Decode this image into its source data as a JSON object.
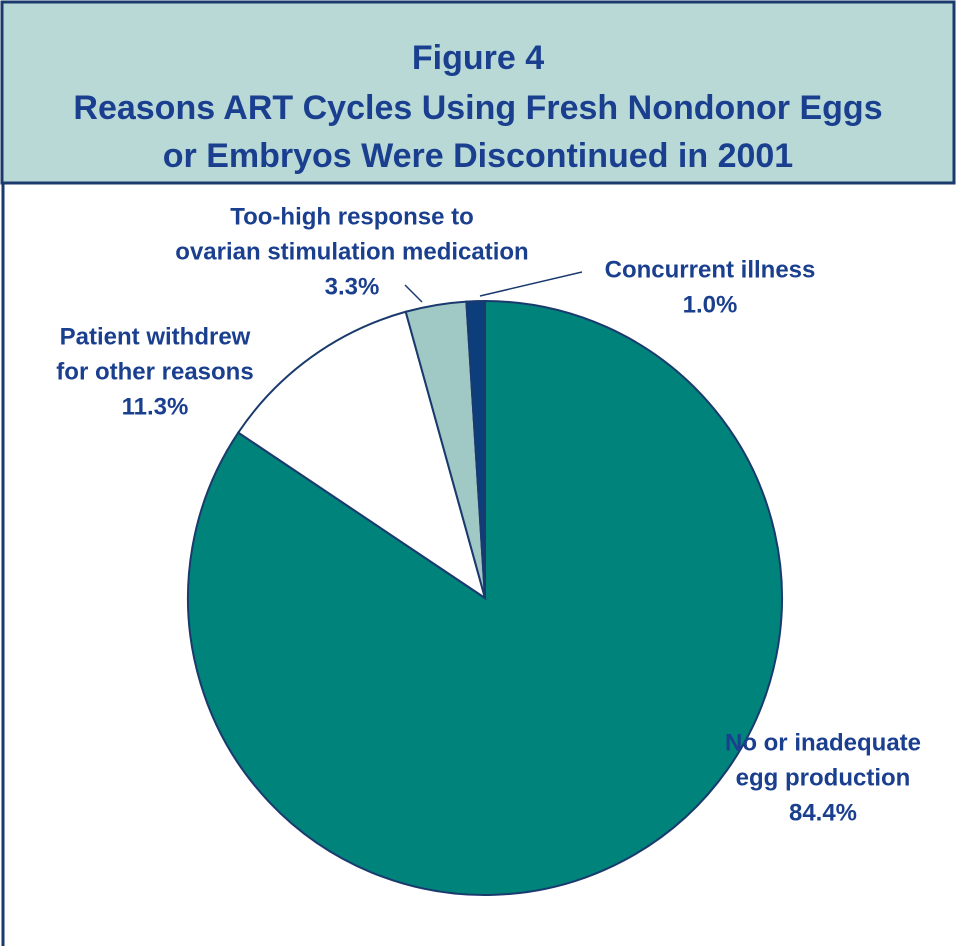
{
  "chart_data": {
    "type": "pie",
    "title": [
      "Figure 4",
      "Reasons ART Cycles Using Fresh Nondonor Eggs",
      "or Embryos Were Discontinued in 2001"
    ],
    "categories": [
      [
        "No or inadequate",
        "egg production"
      ],
      [
        "Patient withdrew",
        "for other reasons"
      ],
      [
        "Too-high response to",
        "ovarian stimulation medication"
      ],
      [
        "Concurrent illness"
      ]
    ],
    "values": [
      84.4,
      11.3,
      3.3,
      1.0
    ],
    "value_labels": [
      "84.4%",
      "11.3%",
      "3.3%",
      "1.0%"
    ],
    "colors": [
      "#00837a",
      "#ffffff",
      "#a0c8c4",
      "#0c3e7c"
    ]
  }
}
